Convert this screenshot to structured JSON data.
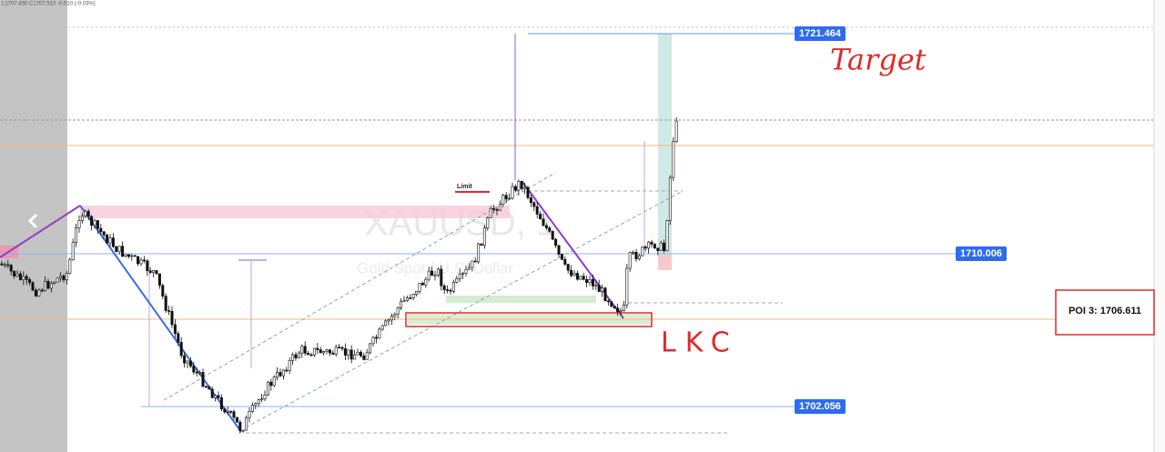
{
  "header": {
    "ohlc": "L1707.450 C1707.510 -0.510 (-0.03%)"
  },
  "watermark": {
    "symbol": "XAUUSD, 1",
    "name": "Gold Spot / U.S. Dollar"
  },
  "price_labels": [
    "1721.464",
    "1710.006",
    "1702.056"
  ],
  "poi": "POI 3: 1706.611",
  "annotations": {
    "target": "Target",
    "lkc": "LKC",
    "limit": "Limit"
  }
}
